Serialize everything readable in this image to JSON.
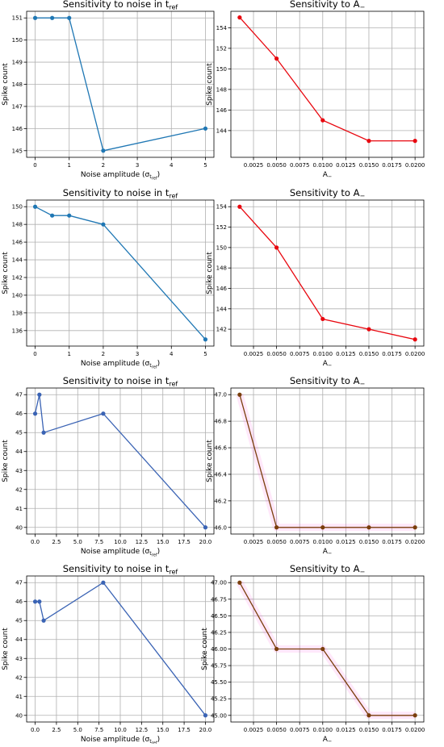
{
  "chart_data": [
    {
      "type": "line",
      "title": "Sensitivity to noise in t",
      "title_sub": "ref",
      "xlabel": "Noise amplitude (σ",
      "xlabel_sub": "t",
      "xlabel_subsub": "ref",
      "xlabel_tail": ")",
      "ylabel": "Spike count",
      "xlim": [
        -0.25,
        5.25
      ],
      "ylim": [
        144.7,
        151.3
      ],
      "xticks": [
        "0",
        "1",
        "2",
        "3",
        "4",
        "5"
      ],
      "yticks": [
        "145",
        "146",
        "147",
        "148",
        "149",
        "150",
        "151"
      ],
      "grid": true,
      "series": [
        {
          "color": "#1f77b4",
          "x": [
            0,
            0.5,
            1,
            2,
            5
          ],
          "y": [
            151,
            151,
            151,
            145,
            146
          ]
        }
      ]
    },
    {
      "type": "line",
      "title": "Sensitivity to A",
      "title_sub": "−",
      "xlabel": "A",
      "xlabel_sub": "−",
      "ylabel": "Spike count",
      "xlim": [
        5e-05,
        0.02095
      ],
      "ylim": [
        141.4,
        155.6
      ],
      "xticks": [
        "0.0025",
        "0.0050",
        "0.0075",
        "0.0100",
        "0.0125",
        "0.0150",
        "0.0175",
        "0.0200"
      ],
      "yticks": [
        "144",
        "146",
        "148",
        "150",
        "152",
        "154"
      ],
      "grid": true,
      "series": [
        {
          "color": "#e8070f",
          "x": [
            0.001,
            0.005,
            0.01,
            0.015,
            0.02
          ],
          "y": [
            155,
            151,
            145,
            143,
            143
          ]
        }
      ]
    },
    {
      "type": "line",
      "title": "Sensitivity to noise in t",
      "title_sub": "ref",
      "xlabel": "Noise amplitude (σ",
      "xlabel_sub": "t",
      "xlabel_subsub": "ref",
      "xlabel_tail": ")",
      "ylabel": "Spike count",
      "xlim": [
        -0.25,
        5.25
      ],
      "ylim": [
        134.25,
        150.75
      ],
      "xticks": [
        "0",
        "1",
        "2",
        "3",
        "4",
        "5"
      ],
      "yticks": [
        "136",
        "138",
        "140",
        "142",
        "144",
        "146",
        "148",
        "150"
      ],
      "grid": true,
      "series": [
        {
          "color": "#1f77b4",
          "x": [
            0,
            0.5,
            1,
            2,
            5
          ],
          "y": [
            150,
            149,
            149,
            148,
            135
          ]
        }
      ]
    },
    {
      "type": "line",
      "title": "Sensitivity to A",
      "title_sub": "−",
      "xlabel": "A",
      "xlabel_sub": "−",
      "ylabel": "Spike count",
      "xlim": [
        5e-05,
        0.02095
      ],
      "ylim": [
        140.35,
        154.65
      ],
      "xticks": [
        "0.0025",
        "0.0050",
        "0.0075",
        "0.0100",
        "0.0125",
        "0.0150",
        "0.0175",
        "0.0200"
      ],
      "yticks": [
        "142",
        "144",
        "146",
        "148",
        "150",
        "152",
        "154"
      ],
      "grid": true,
      "series": [
        {
          "color": "#e8070f",
          "x": [
            0.001,
            0.005,
            0.01,
            0.015,
            0.02
          ],
          "y": [
            154,
            150,
            143,
            142,
            141
          ]
        }
      ]
    },
    {
      "type": "line",
      "title": "Sensitivity to noise in t",
      "title_sub": "ref",
      "xlabel": "Noise amplitude (σ",
      "xlabel_sub": "t",
      "xlabel_subsub": "ref",
      "xlabel_tail": ")",
      "ylabel": "Spike count",
      "xlim": [
        -1,
        21
      ],
      "ylim": [
        39.65,
        47.35
      ],
      "xticks": [
        "0.0",
        "2.5",
        "5.0",
        "7.5",
        "10.0",
        "12.5",
        "15.0",
        "17.5",
        "20.0"
      ],
      "yticks": [
        "40",
        "41",
        "42",
        "43",
        "44",
        "45",
        "46",
        "47"
      ],
      "grid": true,
      "series": [
        {
          "color": "#3a63b4",
          "x": [
            0,
            0.5,
            1,
            8,
            20
          ],
          "y": [
            46,
            47,
            45,
            46,
            40
          ]
        }
      ]
    },
    {
      "type": "line",
      "title": "Sensitivity to A",
      "title_sub": "−",
      "xlabel": "A",
      "xlabel_sub": "−",
      "ylabel": "Spike count",
      "xlim": [
        5e-05,
        0.02095
      ],
      "ylim": [
        45.95,
        47.05
      ],
      "xticks": [
        "0.0025",
        "0.0050",
        "0.0075",
        "0.0100",
        "0.0125",
        "0.0150",
        "0.0175",
        "0.0200"
      ],
      "yticks": [
        "46.0",
        "46.2",
        "46.4",
        "46.6",
        "46.8",
        "47.0"
      ],
      "grid": true,
      "shadow": true,
      "series": [
        {
          "color": "#7a3e0c",
          "x": [
            0.001,
            0.005,
            0.01,
            0.015,
            0.02
          ],
          "y": [
            47,
            46,
            46,
            46,
            46
          ]
        }
      ]
    },
    {
      "type": "line",
      "title": "Sensitivity to noise in t",
      "title_sub": "ref",
      "xlabel": "Noise amplitude (σ",
      "xlabel_sub": "t",
      "xlabel_subsub": "ref",
      "xlabel_tail": ")",
      "ylabel": "Spike count",
      "xlim": [
        -1,
        21
      ],
      "ylim": [
        39.65,
        47.35
      ],
      "xticks": [
        "0.0",
        "2.5",
        "5.0",
        "7.5",
        "10.0",
        "12.5",
        "15.0",
        "17.5",
        "20.0"
      ],
      "yticks": [
        "40",
        "41",
        "42",
        "43",
        "44",
        "45",
        "46",
        "47"
      ],
      "grid": true,
      "series": [
        {
          "color": "#3a63b4",
          "x": [
            0,
            0.5,
            1,
            8,
            20
          ],
          "y": [
            46,
            46,
            45,
            47,
            40
          ]
        }
      ]
    },
    {
      "type": "line",
      "title": "Sensitivity to A",
      "title_sub": "−",
      "xlabel": "A",
      "xlabel_sub": "−",
      "ylabel": "Spike count",
      "xlim": [
        5e-05,
        0.02095
      ],
      "ylim": [
        44.9,
        47.1
      ],
      "xticks": [
        "0.0025",
        "0.0050",
        "0.0075",
        "0.0100",
        "0.0125",
        "0.0150",
        "0.0175",
        "0.0200"
      ],
      "yticks": [
        "45.00",
        "45.25",
        "45.50",
        "45.75",
        "46.00",
        "46.25",
        "46.50",
        "46.75",
        "47.00"
      ],
      "grid": true,
      "shadow": true,
      "series": [
        {
          "color": "#7a3e0c",
          "x": [
            0.001,
            0.005,
            0.01,
            0.015,
            0.02
          ],
          "y": [
            47,
            46,
            46,
            45,
            45
          ]
        }
      ]
    }
  ]
}
